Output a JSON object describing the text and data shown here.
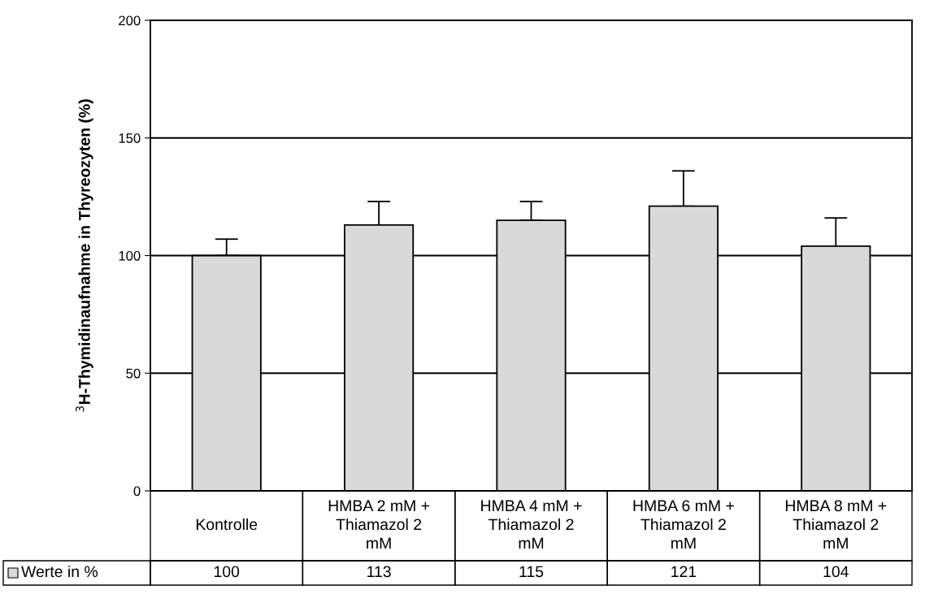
{
  "chart_data": {
    "type": "bar",
    "ylabel": "$^{3}$H-Thymidinaufnahme in Thyreozyten (%)",
    "categories": [
      "Kontrolle",
      "HMBA 2 mM +\nThiamazol 2\nmM",
      "HMBA 4 mM +\nThiamazol 2\nmM",
      "HMBA 6 mM +\nThiamazol 2\nmM",
      "HMBA 8 mM +\nThiamazol 2\nmM"
    ],
    "series": [
      {
        "name": "Werte in %",
        "color": "#d9d9d9",
        "values": [
          100,
          113,
          115,
          121,
          104
        ],
        "errors": [
          7,
          10,
          8,
          15,
          12
        ]
      }
    ],
    "ylim": [
      0,
      200
    ],
    "yticks": [
      0,
      50,
      100,
      150,
      200
    ],
    "grid": "y",
    "data_labels": true
  }
}
